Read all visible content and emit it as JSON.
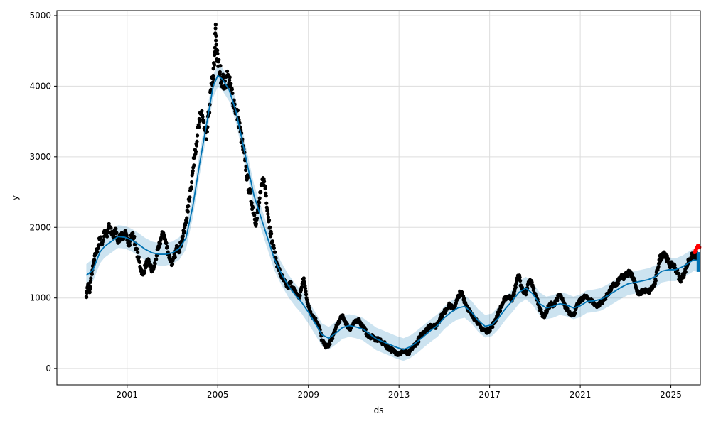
{
  "chart_data": {
    "type": "line",
    "title": "",
    "xlabel": "ds",
    "ylabel": "y",
    "x_range_years": [
      1997.9,
      2026.3
    ],
    "ylim": [
      -230,
      5070
    ],
    "grid": true,
    "x_ticks": [
      {
        "year": 2001,
        "label": "2001"
      },
      {
        "year": 2005,
        "label": "2005"
      },
      {
        "year": 2009,
        "label": "2009"
      },
      {
        "year": 2013,
        "label": "2013"
      },
      {
        "year": 2017,
        "label": "2017"
      },
      {
        "year": 2021,
        "label": "2021"
      },
      {
        "year": 2025,
        "label": "2025"
      }
    ],
    "y_ticks": [
      {
        "value": 0,
        "label": "0"
      },
      {
        "value": 1000,
        "label": "1000"
      },
      {
        "value": 2000,
        "label": "2000"
      },
      {
        "value": 3000,
        "label": "3000"
      },
      {
        "value": 4000,
        "label": "4000"
      },
      {
        "value": 5000,
        "label": "5000"
      }
    ],
    "colors": {
      "observed": "#000000",
      "forecast": "#0072B2",
      "interval": "#0072B2",
      "recent": "#ff0000",
      "grid": "#dddddd"
    },
    "interval_halfwidth": 160,
    "observed": [
      [
        1999.2,
        1020
      ],
      [
        1999.25,
        1150
      ],
      [
        1999.3,
        1200
      ],
      [
        1999.35,
        1080
      ],
      [
        1999.4,
        1280
      ],
      [
        1999.5,
        1450
      ],
      [
        1999.6,
        1620
      ],
      [
        1999.7,
        1700
      ],
      [
        1999.8,
        1850
      ],
      [
        1999.9,
        1760
      ],
      [
        2000.0,
        1950
      ],
      [
        2000.1,
        1880
      ],
      [
        2000.2,
        2050
      ],
      [
        2000.3,
        1920
      ],
      [
        2000.4,
        1850
      ],
      [
        2000.5,
        1980
      ],
      [
        2000.6,
        1780
      ],
      [
        2000.7,
        1900
      ],
      [
        2000.8,
        1850
      ],
      [
        2000.9,
        1920
      ],
      [
        2001.0,
        1820
      ],
      [
        2001.1,
        1780
      ],
      [
        2001.2,
        1900
      ],
      [
        2001.3,
        1850
      ],
      [
        2001.4,
        1700
      ],
      [
        2001.5,
        1560
      ],
      [
        2001.6,
        1420
      ],
      [
        2001.7,
        1330
      ],
      [
        2001.8,
        1450
      ],
      [
        2001.9,
        1520
      ],
      [
        2002.0,
        1480
      ],
      [
        2002.1,
        1380
      ],
      [
        2002.2,
        1450
      ],
      [
        2002.3,
        1600
      ],
      [
        2002.4,
        1720
      ],
      [
        2002.5,
        1850
      ],
      [
        2002.6,
        1920
      ],
      [
        2002.7,
        1800
      ],
      [
        2002.8,
        1650
      ],
      [
        2002.9,
        1550
      ],
      [
        2003.0,
        1480
      ],
      [
        2003.1,
        1600
      ],
      [
        2003.2,
        1720
      ],
      [
        2003.3,
        1680
      ],
      [
        2003.4,
        1800
      ],
      [
        2003.5,
        1920
      ],
      [
        2003.6,
        2100
      ],
      [
        2003.7,
        2300
      ],
      [
        2003.8,
        2550
      ],
      [
        2003.9,
        2800
      ],
      [
        2004.0,
        3100
      ],
      [
        2004.1,
        3300
      ],
      [
        2004.2,
        3500
      ],
      [
        2004.3,
        3650
      ],
      [
        2004.4,
        3400
      ],
      [
        2004.5,
        3250
      ],
      [
        2004.6,
        3600
      ],
      [
        2004.7,
        3950
      ],
      [
        2004.8,
        4150
      ],
      [
        2004.85,
        4300
      ],
      [
        2004.9,
        4820
      ],
      [
        2004.95,
        4500
      ],
      [
        2005.0,
        4350
      ],
      [
        2005.1,
        4200
      ],
      [
        2005.2,
        4100
      ],
      [
        2005.3,
        4000
      ],
      [
        2005.4,
        4150
      ],
      [
        2005.5,
        4050
      ],
      [
        2005.6,
        3950
      ],
      [
        2005.7,
        3800
      ],
      [
        2005.8,
        3650
      ],
      [
        2005.9,
        3550
      ],
      [
        2006.0,
        3350
      ],
      [
        2006.1,
        3150
      ],
      [
        2006.2,
        2950
      ],
      [
        2006.3,
        2700
      ],
      [
        2006.4,
        2500
      ],
      [
        2006.5,
        2350
      ],
      [
        2006.6,
        2200
      ],
      [
        2006.7,
        2050
      ],
      [
        2006.8,
        2300
      ],
      [
        2006.9,
        2500
      ],
      [
        2007.0,
        2700
      ],
      [
        2007.1,
        2550
      ],
      [
        2007.2,
        2250
      ],
      [
        2007.3,
        2000
      ],
      [
        2007.4,
        1800
      ],
      [
        2007.5,
        1650
      ],
      [
        2007.6,
        1500
      ],
      [
        2007.7,
        1400
      ],
      [
        2007.8,
        1320
      ],
      [
        2007.9,
        1250
      ],
      [
        2008.0,
        1200
      ],
      [
        2008.1,
        1150
      ],
      [
        2008.2,
        1220
      ],
      [
        2008.3,
        1150
      ],
      [
        2008.4,
        1100
      ],
      [
        2008.5,
        1050
      ],
      [
        2008.6,
        1000
      ],
      [
        2008.7,
        1150
      ],
      [
        2008.8,
        1280
      ],
      [
        2008.9,
        1050
      ],
      [
        2009.0,
        880
      ],
      [
        2009.1,
        800
      ],
      [
        2009.2,
        740
      ],
      [
        2009.3,
        700
      ],
      [
        2009.4,
        650
      ],
      [
        2009.5,
        560
      ],
      [
        2009.6,
        400
      ],
      [
        2009.7,
        340
      ],
      [
        2009.8,
        310
      ],
      [
        2009.9,
        330
      ],
      [
        2010.0,
        400
      ],
      [
        2010.1,
        480
      ],
      [
        2010.2,
        560
      ],
      [
        2010.3,
        640
      ],
      [
        2010.4,
        700
      ],
      [
        2010.5,
        740
      ],
      [
        2010.6,
        690
      ],
      [
        2010.7,
        620
      ],
      [
        2010.8,
        560
      ],
      [
        2010.9,
        590
      ],
      [
        2011.0,
        640
      ],
      [
        2011.1,
        660
      ],
      [
        2011.2,
        700
      ],
      [
        2011.3,
        640
      ],
      [
        2011.4,
        600
      ],
      [
        2011.5,
        550
      ],
      [
        2011.6,
        480
      ],
      [
        2011.7,
        440
      ],
      [
        2011.8,
        470
      ],
      [
        2011.9,
        430
      ],
      [
        2012.0,
        400
      ],
      [
        2012.1,
        420
      ],
      [
        2012.2,
        380
      ],
      [
        2012.3,
        360
      ],
      [
        2012.4,
        340
      ],
      [
        2012.5,
        300
      ],
      [
        2012.6,
        280
      ],
      [
        2012.7,
        260
      ],
      [
        2012.8,
        240
      ],
      [
        2012.9,
        220
      ],
      [
        2013.0,
        210
      ],
      [
        2013.1,
        220
      ],
      [
        2013.2,
        260
      ],
      [
        2013.3,
        230
      ],
      [
        2013.4,
        200
      ],
      [
        2013.5,
        250
      ],
      [
        2013.6,
        300
      ],
      [
        2013.7,
        340
      ],
      [
        2013.8,
        370
      ],
      [
        2013.9,
        430
      ],
      [
        2014.0,
        480
      ],
      [
        2014.1,
        520
      ],
      [
        2014.2,
        560
      ],
      [
        2014.3,
        580
      ],
      [
        2014.4,
        620
      ],
      [
        2014.5,
        610
      ],
      [
        2014.6,
        580
      ],
      [
        2014.7,
        650
      ],
      [
        2014.8,
        700
      ],
      [
        2014.9,
        760
      ],
      [
        2015.0,
        800
      ],
      [
        2015.1,
        850
      ],
      [
        2015.2,
        900
      ],
      [
        2015.3,
        880
      ],
      [
        2015.4,
        850
      ],
      [
        2015.5,
        920
      ],
      [
        2015.6,
        1000
      ],
      [
        2015.7,
        1080
      ],
      [
        2015.8,
        1060
      ],
      [
        2015.9,
        950
      ],
      [
        2016.0,
        880
      ],
      [
        2016.1,
        820
      ],
      [
        2016.2,
        760
      ],
      [
        2016.3,
        720
      ],
      [
        2016.4,
        700
      ],
      [
        2016.5,
        640
      ],
      [
        2016.6,
        580
      ],
      [
        2016.7,
        560
      ],
      [
        2016.8,
        540
      ],
      [
        2016.9,
        530
      ],
      [
        2017.0,
        560
      ],
      [
        2017.1,
        600
      ],
      [
        2017.2,
        650
      ],
      [
        2017.3,
        720
      ],
      [
        2017.4,
        800
      ],
      [
        2017.5,
        870
      ],
      [
        2017.6,
        940
      ],
      [
        2017.7,
        1000
      ],
      [
        2017.8,
        1020
      ],
      [
        2017.9,
        1010
      ],
      [
        2018.0,
        980
      ],
      [
        2018.1,
        1100
      ],
      [
        2018.2,
        1250
      ],
      [
        2018.3,
        1320
      ],
      [
        2018.4,
        1150
      ],
      [
        2018.5,
        1100
      ],
      [
        2018.6,
        1050
      ],
      [
        2018.7,
        1200
      ],
      [
        2018.8,
        1250
      ],
      [
        2018.9,
        1180
      ],
      [
        2019.0,
        1050
      ],
      [
        2019.1,
        980
      ],
      [
        2019.2,
        870
      ],
      [
        2019.3,
        780
      ],
      [
        2019.4,
        740
      ],
      [
        2019.5,
        800
      ],
      [
        2019.6,
        870
      ],
      [
        2019.7,
        920
      ],
      [
        2019.8,
        880
      ],
      [
        2019.9,
        960
      ],
      [
        2020.0,
        1000
      ],
      [
        2020.1,
        1050
      ],
      [
        2020.2,
        980
      ],
      [
        2020.3,
        900
      ],
      [
        2020.4,
        850
      ],
      [
        2020.5,
        800
      ],
      [
        2020.6,
        780
      ],
      [
        2020.7,
        760
      ],
      [
        2020.8,
        840
      ],
      [
        2020.9,
        920
      ],
      [
        2021.0,
        960
      ],
      [
        2021.1,
        990
      ],
      [
        2021.2,
        1020
      ],
      [
        2021.3,
        1000
      ],
      [
        2021.4,
        980
      ],
      [
        2021.5,
        960
      ],
      [
        2021.6,
        920
      ],
      [
        2021.7,
        890
      ],
      [
        2021.8,
        900
      ],
      [
        2021.9,
        930
      ],
      [
        2022.0,
        960
      ],
      [
        2022.1,
        1000
      ],
      [
        2022.2,
        1050
      ],
      [
        2022.3,
        1100
      ],
      [
        2022.4,
        1150
      ],
      [
        2022.5,
        1200
      ],
      [
        2022.6,
        1180
      ],
      [
        2022.7,
        1250
      ],
      [
        2022.8,
        1300
      ],
      [
        2022.9,
        1280
      ],
      [
        2023.0,
        1320
      ],
      [
        2023.1,
        1350
      ],
      [
        2023.2,
        1380
      ],
      [
        2023.3,
        1300
      ],
      [
        2023.4,
        1250
      ],
      [
        2023.5,
        1100
      ],
      [
        2023.6,
        1050
      ],
      [
        2023.7,
        1080
      ],
      [
        2023.8,
        1120
      ],
      [
        2023.9,
        1100
      ],
      [
        2024.0,
        1080
      ],
      [
        2024.1,
        1120
      ],
      [
        2024.2,
        1160
      ],
      [
        2024.3,
        1200
      ],
      [
        2024.4,
        1400
      ],
      [
        2024.5,
        1550
      ],
      [
        2024.6,
        1600
      ],
      [
        2024.7,
        1650
      ],
      [
        2024.8,
        1580
      ],
      [
        2024.9,
        1500
      ],
      [
        2025.0,
        1460
      ],
      [
        2025.1,
        1480
      ],
      [
        2025.2,
        1420
      ],
      [
        2025.3,
        1350
      ],
      [
        2025.4,
        1250
      ],
      [
        2025.5,
        1300
      ],
      [
        2025.6,
        1350
      ],
      [
        2025.7,
        1450
      ],
      [
        2025.8,
        1550
      ],
      [
        2025.9,
        1580
      ],
      [
        2026.0,
        1600
      ],
      [
        2026.1,
        1620
      ],
      [
        2026.15,
        1580
      ]
    ],
    "recent": [
      [
        2026.05,
        1650
      ],
      [
        2026.1,
        1680
      ],
      [
        2026.15,
        1710
      ],
      [
        2026.2,
        1740
      ],
      [
        2026.25,
        1720
      ]
    ],
    "forecast": [
      [
        1999.2,
        1320
      ],
      [
        1999.5,
        1400
      ],
      [
        1999.8,
        1650
      ],
      [
        2000.0,
        1730
      ],
      [
        2000.3,
        1800
      ],
      [
        2000.6,
        1870
      ],
      [
        2000.9,
        1860
      ],
      [
        2001.2,
        1820
      ],
      [
        2001.5,
        1760
      ],
      [
        2001.8,
        1690
      ],
      [
        2002.1,
        1640
      ],
      [
        2002.4,
        1620
      ],
      [
        2002.7,
        1620
      ],
      [
        2003.0,
        1640
      ],
      [
        2003.3,
        1700
      ],
      [
        2003.6,
        1850
      ],
      [
        2003.9,
        2300
      ],
      [
        2004.2,
        2900
      ],
      [
        2004.5,
        3450
      ],
      [
        2004.8,
        4000
      ],
      [
        2005.0,
        4150
      ],
      [
        2005.2,
        4100
      ],
      [
        2005.5,
        3950
      ],
      [
        2005.8,
        3650
      ],
      [
        2006.0,
        3350
      ],
      [
        2006.3,
        2900
      ],
      [
        2006.6,
        2450
      ],
      [
        2006.9,
        2150
      ],
      [
        2007.2,
        1850
      ],
      [
        2007.5,
        1550
      ],
      [
        2007.8,
        1350
      ],
      [
        2008.1,
        1180
      ],
      [
        2008.4,
        1050
      ],
      [
        2008.7,
        940
      ],
      [
        2009.0,
        800
      ],
      [
        2009.3,
        640
      ],
      [
        2009.6,
        480
      ],
      [
        2009.9,
        430
      ],
      [
        2010.2,
        500
      ],
      [
        2010.5,
        580
      ],
      [
        2010.8,
        610
      ],
      [
        2011.1,
        590
      ],
      [
        2011.4,
        560
      ],
      [
        2011.7,
        490
      ],
      [
        2012.0,
        420
      ],
      [
        2012.3,
        380
      ],
      [
        2012.6,
        340
      ],
      [
        2012.9,
        300
      ],
      [
        2013.2,
        270
      ],
      [
        2013.5,
        310
      ],
      [
        2013.8,
        380
      ],
      [
        2014.1,
        460
      ],
      [
        2014.4,
        540
      ],
      [
        2014.7,
        610
      ],
      [
        2015.0,
        720
      ],
      [
        2015.3,
        800
      ],
      [
        2015.6,
        860
      ],
      [
        2015.9,
        880
      ],
      [
        2016.2,
        800
      ],
      [
        2016.5,
        680
      ],
      [
        2016.8,
        600
      ],
      [
        2017.1,
        620
      ],
      [
        2017.4,
        720
      ],
      [
        2017.7,
        850
      ],
      [
        2018.0,
        960
      ],
      [
        2018.3,
        1080
      ],
      [
        2018.6,
        1140
      ],
      [
        2018.9,
        1060
      ],
      [
        2019.2,
        920
      ],
      [
        2019.5,
        860
      ],
      [
        2019.8,
        880
      ],
      [
        2020.1,
        920
      ],
      [
        2020.4,
        900
      ],
      [
        2020.7,
        860
      ],
      [
        2021.0,
        890
      ],
      [
        2021.3,
        950
      ],
      [
        2021.6,
        960
      ],
      [
        2021.9,
        980
      ],
      [
        2022.2,
        1030
      ],
      [
        2022.5,
        1090
      ],
      [
        2022.8,
        1150
      ],
      [
        2023.1,
        1200
      ],
      [
        2023.4,
        1220
      ],
      [
        2023.7,
        1240
      ],
      [
        2024.0,
        1260
      ],
      [
        2024.3,
        1300
      ],
      [
        2024.6,
        1380
      ],
      [
        2024.9,
        1400
      ],
      [
        2025.2,
        1400
      ],
      [
        2025.5,
        1440
      ],
      [
        2025.8,
        1500
      ],
      [
        2026.0,
        1540
      ],
      [
        2026.2,
        1530
      ]
    ]
  }
}
